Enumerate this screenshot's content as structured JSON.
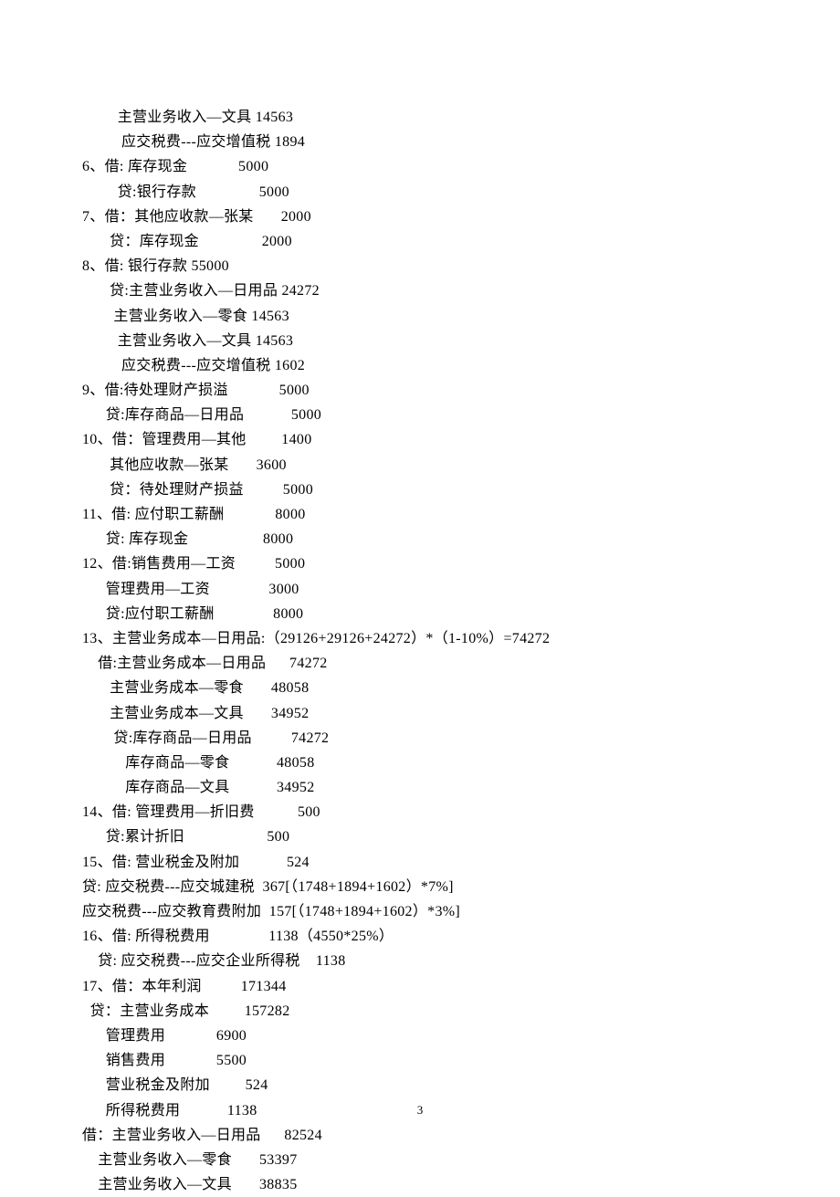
{
  "doc": {
    "font_family": "SimSun",
    "font_size_pt": 12,
    "text_color": "#000000",
    "background_color": "#ffffff",
    "line_height": 1.7
  },
  "page_number": "3",
  "lines": {
    "l00": "         主营业务收入—文具 14563",
    "l01": "          应交税费---应交增值税 1894",
    "l02": "6、借: 库存现金             5000",
    "l03": "         贷:银行存款                5000",
    "l04": "7、借：其他应收款—张某       2000",
    "l05": "       贷：库存现金                2000",
    "l06": "8、借: 银行存款 55000",
    "l07": "       贷:主营业务收入—日用品 24272",
    "l08": "        主营业务收入—零食 14563",
    "l09": "         主营业务收入—文具 14563",
    "l10": "          应交税费---应交增值税 1602",
    "l11": "9、借:待处理财产损溢             5000",
    "l12": "      贷:库存商品—日用品            5000",
    "l13": "10、借：管理费用—其他         1400",
    "l14": "       其他应收款—张某       3600",
    "l15": "       贷：待处理财产损益          5000",
    "l16": "11、借: 应付职工薪酬             8000",
    "l17": "      贷: 库存现金                   8000",
    "l18": "12、借:销售费用—工资          5000",
    "l19": "      管理费用—工资               3000",
    "l20": "      贷:应付职工薪酬               8000",
    "l21": "13、主营业务成本—日用品:（29126+29126+24272）*（1-10%）=74272",
    "l22": "    借:主营业务成本—日用品      74272",
    "l23": "       主营业务成本—零食       48058",
    "l24": "       主营业务成本—文具       34952",
    "l25": "        贷:库存商品—日用品          74272",
    "l26": "           库存商品—零食            48058",
    "l27": "           库存商品—文具            34952",
    "l28": "14、借: 管理费用—折旧费           500",
    "l29": "      贷:累计折旧                     500",
    "l30": "15、借: 营业税金及附加            524",
    "l31": "贷: 应交税费---应交城建税  367[（1748+1894+1602）*7%]",
    "l32": "应交税费---应交教育费附加  157[（1748+1894+1602）*3%]",
    "l33": "16、借: 所得税费用               1138（4550*25%）",
    "l34": "    贷: 应交税费---应交企业所得税    1138",
    "l35": "17、借：本年利润          171344",
    "l36": "  贷：主营业务成本         157282",
    "l37": "      管理费用             6900",
    "l38": "      销售费用             5500",
    "l39": "      营业税金及附加         524",
    "l40": "      所得税费用            1138",
    "l41": "借：主营业务收入—日用品      82524",
    "l42": "    主营业务收入—零食       53397",
    "l43": "    主营业务收入—文具       38835"
  }
}
